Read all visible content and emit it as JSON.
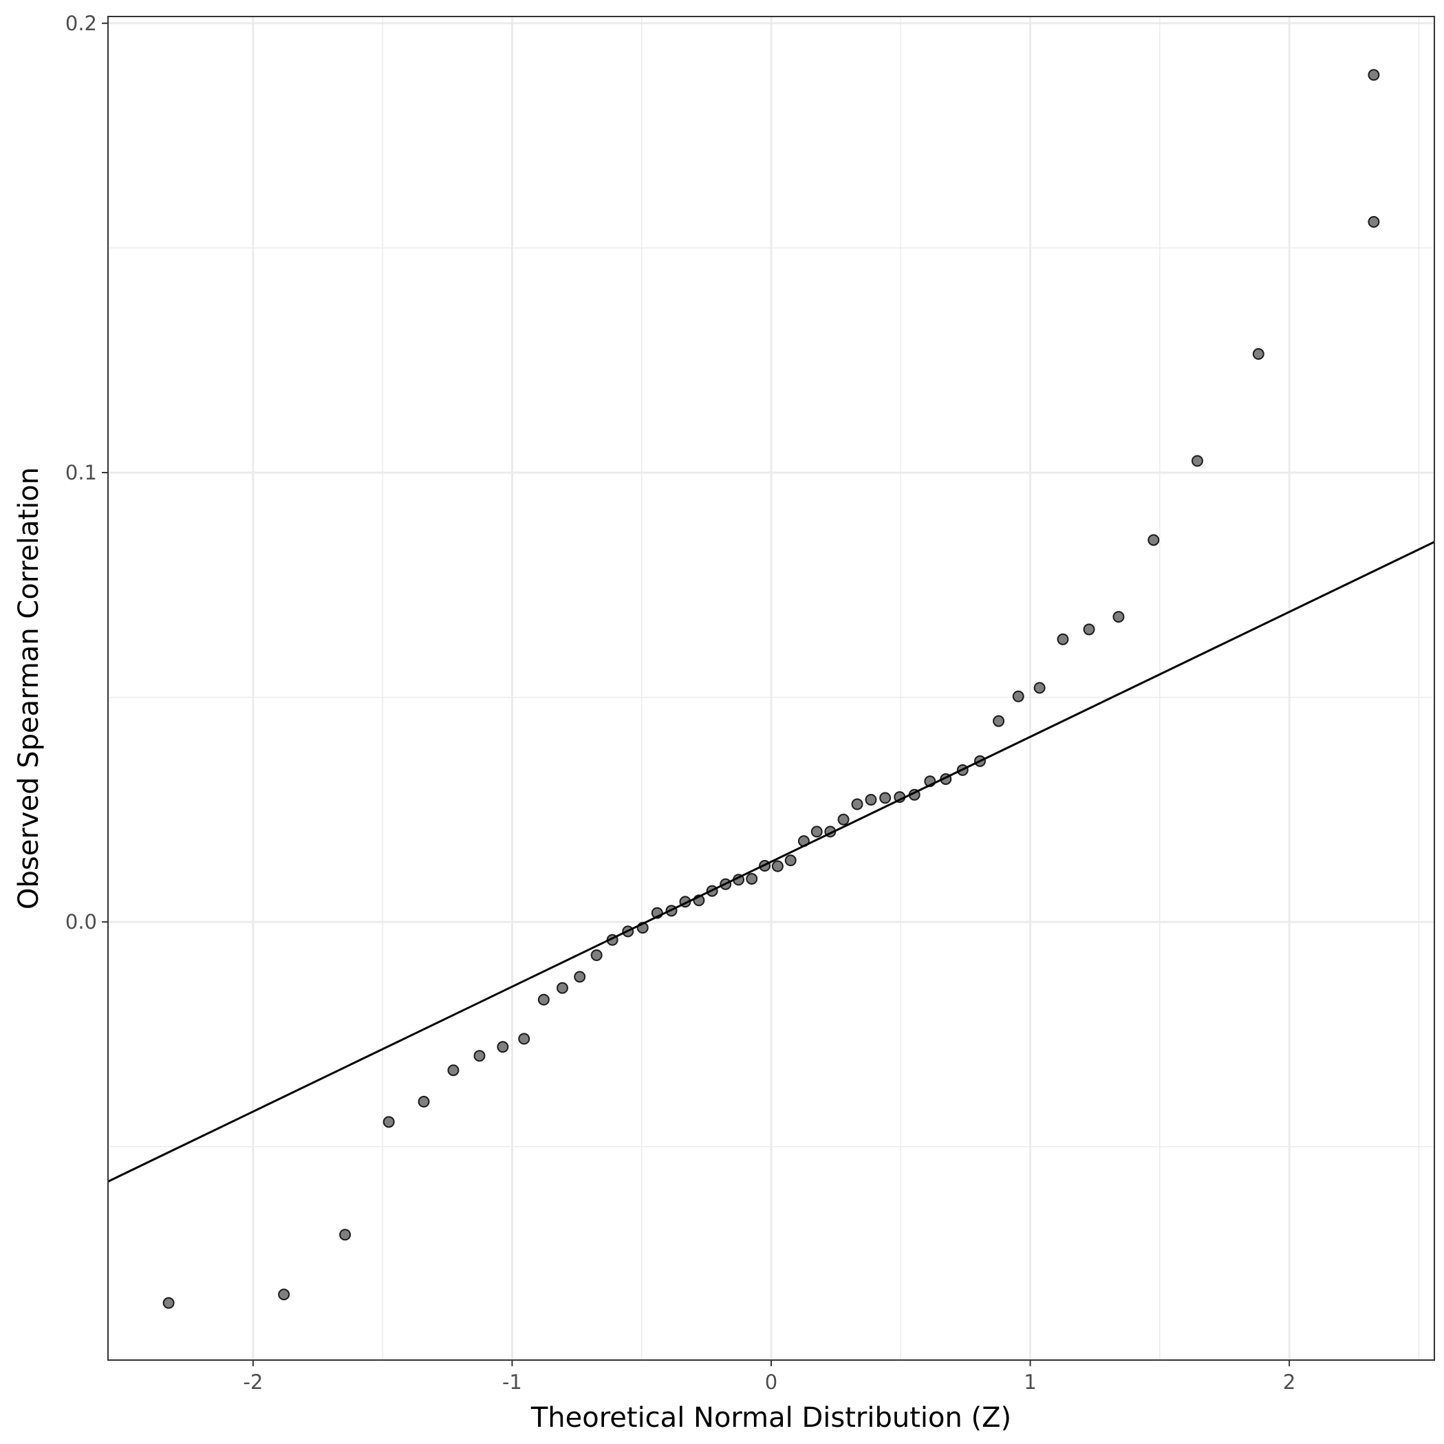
{
  "chart_data": {
    "type": "scatter",
    "title": "",
    "xlabel": "Theoretical Normal Distribution (Z)",
    "ylabel": "Observed Spearman Correlation",
    "xlim": [
      -2.56,
      2.56
    ],
    "ylim": [
      -0.0975,
      0.2015
    ],
    "x_ticks": [
      -2,
      -1,
      0,
      1,
      2
    ],
    "x_tick_labels": [
      "-2",
      "-1",
      "0",
      "1",
      "2"
    ],
    "y_ticks": [
      0.0,
      0.1,
      0.2
    ],
    "y_tick_labels": [
      "0.0",
      "0.1",
      "0.2"
    ],
    "x_minor_ticks": [
      -1.5,
      -0.5,
      0.5,
      1.5,
      2.5
    ],
    "y_minor_ticks": [
      -0.05,
      0.05,
      0.15
    ],
    "grid": true,
    "theme": "bw",
    "point_color": "#000000",
    "point_alpha": 0.5,
    "line_color": "#000000",
    "reference_line": {
      "intercept": 0.0134,
      "slope": 0.0278
    },
    "points": [
      {
        "x": -2.326,
        "y": -0.0848
      },
      {
        "x": -1.881,
        "y": -0.0829
      },
      {
        "x": -1.645,
        "y": -0.0696
      },
      {
        "x": -1.476,
        "y": -0.0445
      },
      {
        "x": -1.341,
        "y": -0.04
      },
      {
        "x": -1.227,
        "y": -0.033
      },
      {
        "x": -1.126,
        "y": -0.0298
      },
      {
        "x": -1.036,
        "y": -0.0278
      },
      {
        "x": -0.954,
        "y": -0.026
      },
      {
        "x": -0.878,
        "y": -0.0173
      },
      {
        "x": -0.806,
        "y": -0.0147
      },
      {
        "x": -0.739,
        "y": -0.0122
      },
      {
        "x": -0.674,
        "y": -0.0074
      },
      {
        "x": -0.613,
        "y": -0.004
      },
      {
        "x": -0.553,
        "y": -0.0021
      },
      {
        "x": -0.496,
        "y": -0.0013
      },
      {
        "x": -0.44,
        "y": 0.002
      },
      {
        "x": -0.385,
        "y": 0.0025
      },
      {
        "x": -0.332,
        "y": 0.0045
      },
      {
        "x": -0.279,
        "y": 0.0048
      },
      {
        "x": -0.228,
        "y": 0.0069
      },
      {
        "x": -0.176,
        "y": 0.0084
      },
      {
        "x": -0.126,
        "y": 0.0094
      },
      {
        "x": -0.075,
        "y": 0.0096
      },
      {
        "x": -0.025,
        "y": 0.0125
      },
      {
        "x": 0.025,
        "y": 0.0124
      },
      {
        "x": 0.075,
        "y": 0.0137
      },
      {
        "x": 0.126,
        "y": 0.018
      },
      {
        "x": 0.176,
        "y": 0.0201
      },
      {
        "x": 0.228,
        "y": 0.0201
      },
      {
        "x": 0.279,
        "y": 0.0228
      },
      {
        "x": 0.332,
        "y": 0.0262
      },
      {
        "x": 0.385,
        "y": 0.0272
      },
      {
        "x": 0.44,
        "y": 0.0276
      },
      {
        "x": 0.496,
        "y": 0.0278
      },
      {
        "x": 0.553,
        "y": 0.0283
      },
      {
        "x": 0.613,
        "y": 0.0313
      },
      {
        "x": 0.674,
        "y": 0.0318
      },
      {
        "x": 0.739,
        "y": 0.0338
      },
      {
        "x": 0.806,
        "y": 0.0358
      },
      {
        "x": 0.878,
        "y": 0.0447
      },
      {
        "x": 0.954,
        "y": 0.0502
      },
      {
        "x": 1.036,
        "y": 0.0521
      },
      {
        "x": 1.126,
        "y": 0.0629
      },
      {
        "x": 1.227,
        "y": 0.0651
      },
      {
        "x": 1.341,
        "y": 0.0679
      },
      {
        "x": 1.476,
        "y": 0.085
      },
      {
        "x": 1.645,
        "y": 0.1026
      },
      {
        "x": 1.881,
        "y": 0.1264
      },
      {
        "x": 2.326,
        "y": 0.1558
      },
      {
        "x": 2.326,
        "y": 0.1885
      }
    ]
  }
}
